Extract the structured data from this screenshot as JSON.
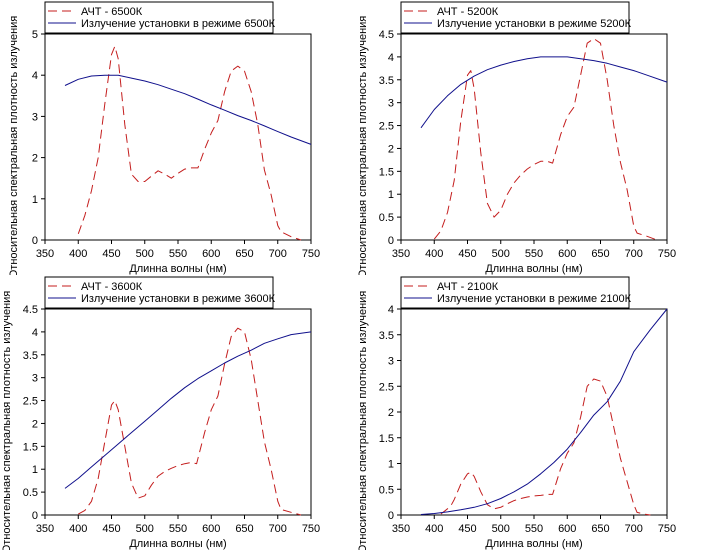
{
  "colors": {
    "reference": "#c41e1e",
    "measured": "#10108c",
    "axis": "#000000"
  },
  "chart_data": [
    {
      "type": "line",
      "xlabel": "Длинна волны (нм)",
      "ylabel": "Относительная спектральная плотность излучения",
      "xlim": [
        350,
        750
      ],
      "ylim": [
        0,
        5
      ],
      "xticks": [
        350,
        400,
        450,
        500,
        550,
        600,
        650,
        700,
        750
      ],
      "yticks": [
        0,
        1,
        2,
        3,
        4,
        5
      ],
      "legend": "top-left-outside",
      "grid": false,
      "series": [
        {
          "name": "АЧТ - 6500К",
          "style": "dashed",
          "x": [
            400,
            410,
            420,
            430,
            440,
            450,
            455,
            460,
            470,
            480,
            490,
            500,
            510,
            520,
            530,
            540,
            550,
            560,
            570,
            580,
            590,
            600,
            610,
            620,
            630,
            640,
            650,
            660,
            670,
            680,
            690,
            700,
            705,
            720,
            735
          ],
          "y": [
            0.15,
            0.6,
            1.2,
            2.0,
            3.3,
            4.5,
            4.7,
            4.4,
            2.8,
            1.6,
            1.42,
            1.42,
            1.55,
            1.68,
            1.6,
            1.5,
            1.62,
            1.72,
            1.75,
            1.75,
            2.2,
            2.6,
            2.9,
            3.6,
            4.1,
            4.22,
            4.1,
            3.6,
            2.8,
            1.7,
            1.1,
            0.35,
            0.2,
            0.08,
            0
          ]
        },
        {
          "name": "Излучение установки в режиме 6500К",
          "style": "solid",
          "x": [
            380,
            400,
            420,
            440,
            460,
            480,
            500,
            520,
            540,
            560,
            580,
            600,
            620,
            640,
            660,
            680,
            700,
            720,
            750
          ],
          "y": [
            3.75,
            3.9,
            3.98,
            4.0,
            4.0,
            3.93,
            3.86,
            3.77,
            3.66,
            3.55,
            3.42,
            3.28,
            3.15,
            3.02,
            2.9,
            2.77,
            2.63,
            2.5,
            2.32
          ]
        }
      ]
    },
    {
      "type": "line",
      "xlabel": "Длинна волны (нм)",
      "ylabel": "Относительная спектральная плотность излучения",
      "xlim": [
        350,
        750
      ],
      "ylim": [
        0,
        4.5
      ],
      "xticks": [
        350,
        400,
        450,
        500,
        550,
        600,
        650,
        700,
        750
      ],
      "yticks": [
        0,
        0.5,
        1,
        1.5,
        2,
        2.5,
        3,
        3.5,
        4,
        4.5
      ],
      "legend": "top-left-outside",
      "grid": false,
      "series": [
        {
          "name": "АЧТ - 5200К",
          "style": "dashed",
          "x": [
            400,
            410,
            420,
            430,
            440,
            450,
            455,
            460,
            470,
            480,
            490,
            500,
            510,
            520,
            530,
            540,
            550,
            560,
            570,
            578,
            590,
            600,
            610,
            620,
            630,
            640,
            650,
            660,
            670,
            680,
            690,
            700,
            705,
            720,
            735
          ],
          "y": [
            0.02,
            0.2,
            0.6,
            1.3,
            2.6,
            3.6,
            3.7,
            3.3,
            1.9,
            0.8,
            0.5,
            0.65,
            1.0,
            1.25,
            1.42,
            1.55,
            1.65,
            1.72,
            1.72,
            1.68,
            2.3,
            2.7,
            2.9,
            3.6,
            4.3,
            4.4,
            4.3,
            3.5,
            2.5,
            1.7,
            1.1,
            0.3,
            0.15,
            0.08,
            0
          ]
        },
        {
          "name": "Излучение установки в режиме 5200К",
          "style": "solid",
          "x": [
            380,
            400,
            420,
            440,
            460,
            480,
            500,
            520,
            540,
            560,
            580,
            600,
            620,
            640,
            660,
            680,
            700,
            720,
            750
          ],
          "y": [
            2.45,
            2.85,
            3.15,
            3.4,
            3.58,
            3.72,
            3.82,
            3.9,
            3.96,
            4.0,
            4.0,
            4.0,
            3.96,
            3.92,
            3.86,
            3.78,
            3.7,
            3.6,
            3.45
          ]
        }
      ]
    },
    {
      "type": "line",
      "xlabel": "Длинна волны (нм)",
      "ylabel": "Относительная спектральная плотность излучения",
      "xlim": [
        350,
        750
      ],
      "ylim": [
        0,
        4.5
      ],
      "xticks": [
        350,
        400,
        450,
        500,
        550,
        600,
        650,
        700,
        750
      ],
      "yticks": [
        0,
        0.5,
        1,
        1.5,
        2,
        2.5,
        3,
        3.5,
        4,
        4.5
      ],
      "legend": "top-left-outside",
      "grid": false,
      "series": [
        {
          "name": "АЧТ - 3600К",
          "style": "dashed",
          "x": [
            400,
            410,
            420,
            430,
            440,
            450,
            455,
            460,
            470,
            480,
            490,
            500,
            510,
            520,
            530,
            540,
            550,
            560,
            570,
            578,
            590,
            600,
            610,
            620,
            630,
            640,
            650,
            660,
            670,
            680,
            690,
            700,
            705,
            720,
            735
          ],
          "y": [
            0.02,
            0.1,
            0.3,
            0.8,
            1.6,
            2.4,
            2.5,
            2.3,
            1.5,
            0.7,
            0.37,
            0.42,
            0.65,
            0.85,
            0.95,
            1.02,
            1.08,
            1.12,
            1.15,
            1.12,
            1.8,
            2.3,
            2.6,
            3.3,
            3.9,
            4.08,
            4.0,
            3.4,
            2.5,
            1.6,
            1.0,
            0.3,
            0.12,
            0.06,
            0
          ]
        },
        {
          "name": "Излучение установки в режиме 3600К",
          "style": "solid",
          "x": [
            380,
            400,
            420,
            440,
            460,
            480,
            500,
            520,
            540,
            560,
            580,
            600,
            620,
            640,
            660,
            680,
            700,
            720,
            750
          ],
          "y": [
            0.58,
            0.8,
            1.05,
            1.3,
            1.55,
            1.8,
            2.05,
            2.3,
            2.55,
            2.78,
            2.98,
            3.15,
            3.32,
            3.47,
            3.6,
            3.75,
            3.85,
            3.94,
            4.0
          ]
        }
      ]
    },
    {
      "type": "line",
      "xlabel": "Длинна волны (нм)",
      "ylabel": "Относительная спектральная плотность излучения",
      "xlim": [
        350,
        750
      ],
      "ylim": [
        0,
        4
      ],
      "xticks": [
        350,
        400,
        450,
        500,
        550,
        600,
        650,
        700,
        750
      ],
      "yticks": [
        0,
        0.5,
        1,
        1.5,
        2,
        2.5,
        3,
        3.5,
        4
      ],
      "legend": "top-left-outside",
      "grid": false,
      "series": [
        {
          "name": "АЧТ - 2100К",
          "style": "dashed",
          "x": [
            410,
            420,
            425,
            430,
            440,
            450,
            455,
            460,
            470,
            480,
            490,
            500,
            510,
            520,
            530,
            540,
            550,
            560,
            570,
            578,
            590,
            600,
            610,
            620,
            630,
            640,
            650,
            660,
            670,
            680,
            690,
            700,
            705,
            715,
            725
          ],
          "y": [
            0.02,
            0.12,
            0.18,
            0.3,
            0.6,
            0.8,
            0.83,
            0.75,
            0.45,
            0.2,
            0.12,
            0.15,
            0.22,
            0.28,
            0.32,
            0.35,
            0.37,
            0.38,
            0.4,
            0.4,
            0.9,
            1.2,
            1.4,
            1.9,
            2.5,
            2.64,
            2.6,
            2.3,
            1.7,
            1.1,
            0.65,
            0.2,
            0.05,
            0.02,
            0
          ]
        },
        {
          "name": "Излучение установки в режиме 2100К",
          "style": "solid",
          "x": [
            380,
            400,
            420,
            440,
            460,
            480,
            500,
            520,
            540,
            560,
            580,
            600,
            620,
            640,
            660,
            680,
            700,
            725,
            750
          ],
          "y": [
            0.01,
            0.03,
            0.06,
            0.1,
            0.15,
            0.22,
            0.32,
            0.45,
            0.6,
            0.8,
            1.02,
            1.28,
            1.6,
            1.94,
            2.2,
            2.6,
            3.17,
            3.6,
            4.0
          ]
        }
      ]
    }
  ]
}
